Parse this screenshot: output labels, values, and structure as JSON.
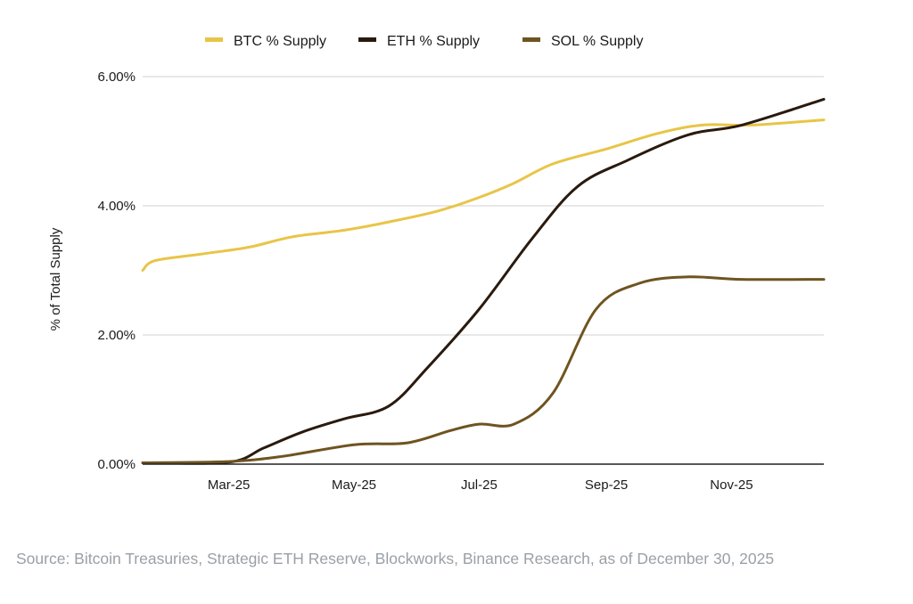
{
  "chart_data": {
    "type": "line",
    "ylabel": "% of Total Supply",
    "xlabel": "",
    "ylim": [
      0,
      6
    ],
    "y_ticks": [
      0,
      2,
      4,
      6
    ],
    "y_tick_labels": [
      "0.00%",
      "2.00%",
      "4.00%",
      "6.00%"
    ],
    "x_range": [
      "2025-02-01",
      "2025-12-30"
    ],
    "x_ticks": [
      "2025-03-15",
      "2025-05-15",
      "2025-07-15",
      "2025-09-15",
      "2025-11-15"
    ],
    "x_tick_labels": [
      "Mar-25",
      "May-25",
      "Jul-25",
      "Sep-25",
      "Nov-25"
    ],
    "grid": "horizontal",
    "legend_position": "top-center",
    "series": [
      {
        "name": "BTC % Supply",
        "color": "#E8C547",
        "x": [
          "2025-02-01",
          "2025-02-07",
          "2025-03-01",
          "2025-03-25",
          "2025-04-15",
          "2025-05-10",
          "2025-06-01",
          "2025-06-25",
          "2025-07-15",
          "2025-08-01",
          "2025-08-20",
          "2025-09-15",
          "2025-10-10",
          "2025-11-01",
          "2025-11-25",
          "2025-12-30"
        ],
        "values": [
          3.0,
          3.15,
          3.25,
          3.36,
          3.52,
          3.62,
          3.75,
          3.92,
          4.13,
          4.35,
          4.65,
          4.88,
          5.12,
          5.25,
          5.25,
          5.33
        ]
      },
      {
        "name": "ETH % Supply",
        "color": "#2A1A0E",
        "x": [
          "2025-02-01",
          "2025-03-15",
          "2025-04-01",
          "2025-04-20",
          "2025-05-10",
          "2025-06-01",
          "2025-06-20",
          "2025-07-15",
          "2025-08-10",
          "2025-09-01",
          "2025-09-25",
          "2025-10-25",
          "2025-11-20",
          "2025-12-30"
        ],
        "values": [
          0.02,
          0.03,
          0.25,
          0.5,
          0.7,
          0.9,
          1.5,
          2.4,
          3.5,
          4.3,
          4.7,
          5.1,
          5.25,
          5.65
        ]
      },
      {
        "name": "SOL % Supply",
        "color": "#6E5420",
        "x": [
          "2025-02-01",
          "2025-03-15",
          "2025-04-10",
          "2025-05-15",
          "2025-06-10",
          "2025-07-01",
          "2025-07-15",
          "2025-08-01",
          "2025-08-20",
          "2025-09-10",
          "2025-10-01",
          "2025-10-25",
          "2025-11-20",
          "2025-12-30"
        ],
        "values": [
          0.02,
          0.04,
          0.12,
          0.3,
          0.33,
          0.52,
          0.62,
          0.62,
          1.1,
          2.4,
          2.8,
          2.9,
          2.86,
          2.86
        ]
      }
    ]
  },
  "source": "Source: Bitcoin Treasuries, Strategic ETH Reserve, Blockworks, Binance Research, as of December 30, 2025",
  "colors": {
    "gridline": "#d0d0d0",
    "axis": "#222222",
    "source_text": "#9aa0a6"
  }
}
